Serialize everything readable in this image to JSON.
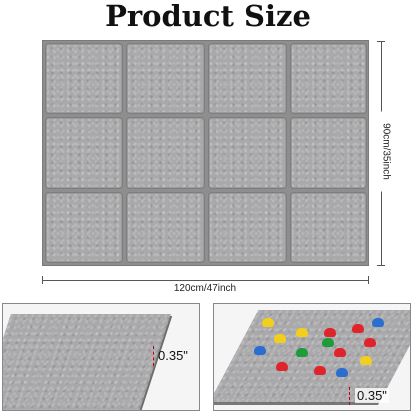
{
  "title": "Product Size",
  "dimensions": {
    "width_label": "120cm/47inch",
    "height_label": "90cm/35inch"
  },
  "grid": {
    "rows": 3,
    "columns": 4
  },
  "details": {
    "left_thickness": "0.35\"",
    "right_thickness": "0.35\""
  },
  "colors": {
    "felt": "#a9a9ab",
    "pin_red": "#e0242c",
    "pin_yellow": "#f2cf1c",
    "pin_green": "#1f9c3a",
    "pin_blue": "#2a6fd0"
  }
}
